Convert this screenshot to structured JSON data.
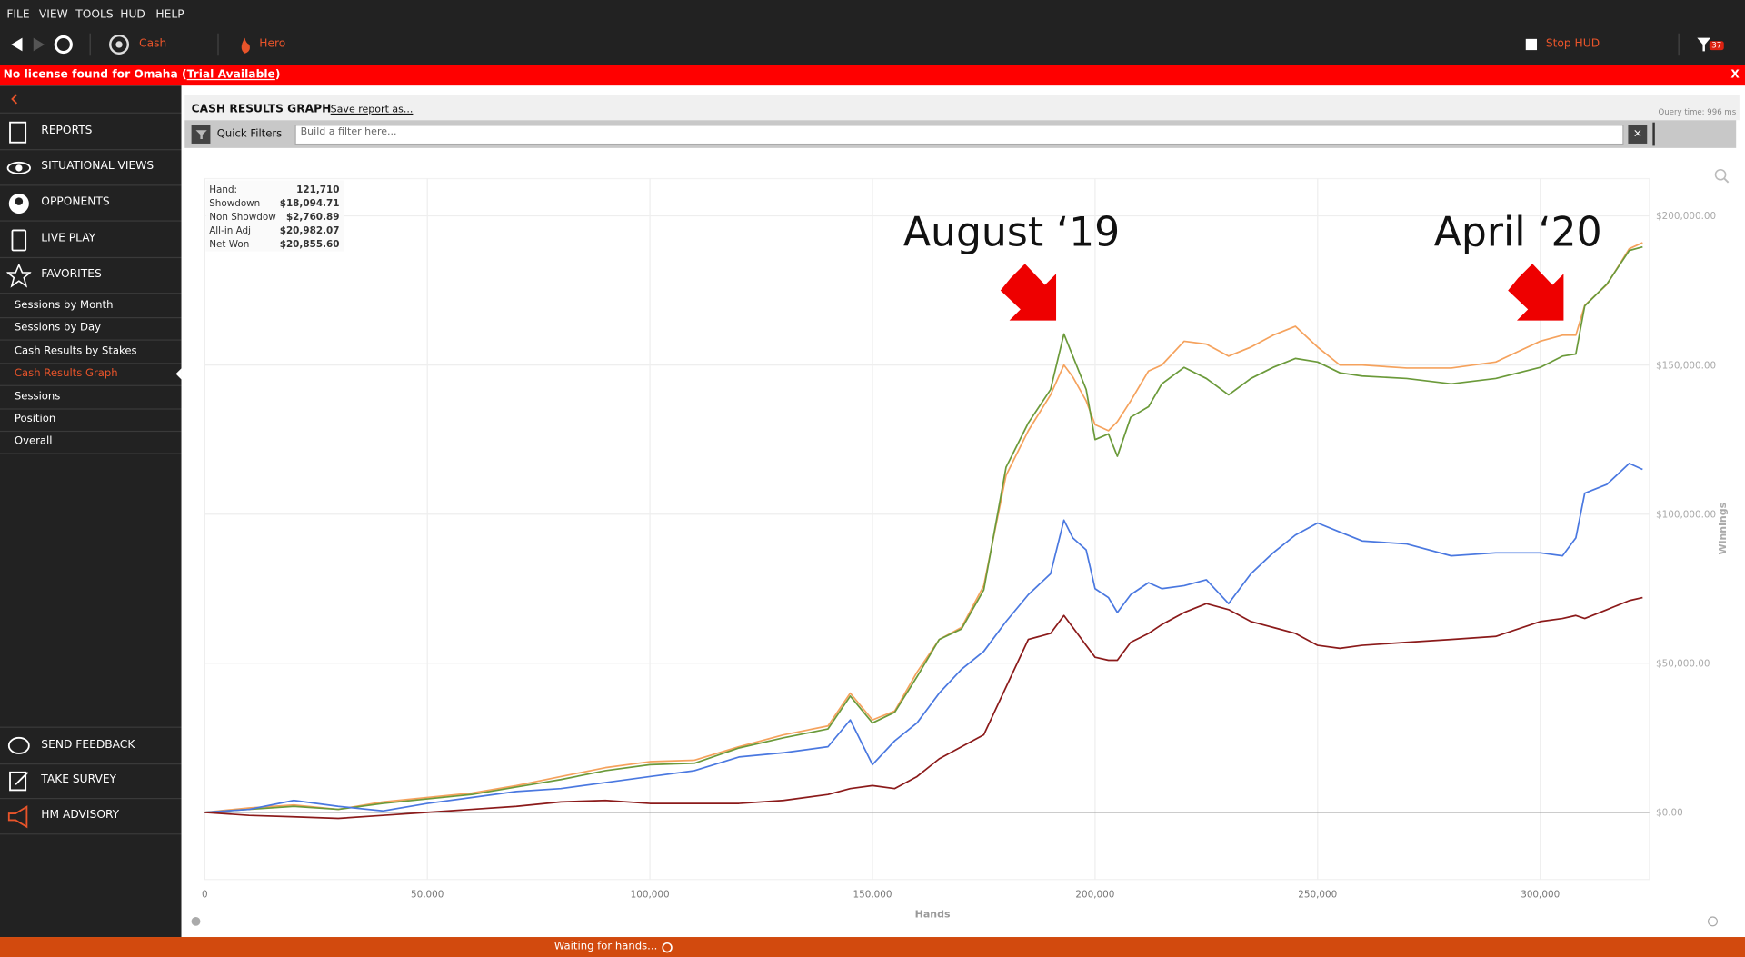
{
  "menu": [
    "FILE",
    "VIEW",
    "TOOLS",
    "HUD",
    "HELP"
  ],
  "toolbar": {
    "cash": "Cash",
    "hero": "Hero",
    "stop_hud": "Stop HUD",
    "filter_count": "37"
  },
  "license": {
    "message": "No license found for Omaha (",
    "link": "Trial Available",
    "suffix": ")",
    "close": "X"
  },
  "sidebar": {
    "nav": [
      "REPORTS",
      "SITUATIONAL VIEWS",
      "OPPONENTS",
      "LIVE PLAY",
      "FAVORITES"
    ],
    "favorites": [
      "Sessions by Month",
      "Sessions by Day",
      "Cash Results by Stakes",
      "Cash Results Graph",
      "Sessions",
      "Position",
      "Overall"
    ],
    "active_favorite": 3,
    "bottom": [
      "SEND FEEDBACK",
      "TAKE SURVEY",
      "HM ADVISORY"
    ]
  },
  "report": {
    "title": "CASH RESULTS GRAPH",
    "save": "Save report as...",
    "query_time": "Query time: 996 ms",
    "quick_filters": "Quick Filters",
    "filter_placeholder": "Build a filter here..."
  },
  "tooltip": {
    "rows": [
      [
        "Hand:",
        "121,710"
      ],
      [
        "Showdown",
        "$18,094.71"
      ],
      [
        "Non Showdow",
        "$2,760.89"
      ],
      [
        "All-in Adj",
        "$20,982.07"
      ],
      [
        "Net Won",
        "$20,855.60"
      ]
    ]
  },
  "chart_data": {
    "type": "line",
    "xlabel": "Hands",
    "ylabel": "Winnings",
    "annotations": [
      "August ‘19",
      "April ‘20"
    ],
    "grid": true,
    "x": [
      0,
      10000,
      20000,
      30000,
      40000,
      50000,
      60000,
      70000,
      80000,
      90000,
      100000,
      110000,
      120000,
      130000,
      140000,
      145000,
      150000,
      155000,
      160000,
      165000,
      170000,
      175000,
      180000,
      185000,
      190000,
      193000,
      195000,
      198000,
      200000,
      203000,
      205000,
      208000,
      212000,
      215000,
      220000,
      225000,
      230000,
      235000,
      240000,
      245000,
      250000,
      255000,
      260000,
      270000,
      280000,
      290000,
      300000,
      305000,
      308000,
      310000,
      315000,
      320000,
      323000
    ],
    "series": [
      {
        "color": "#f5a25d",
        "values": [
          0,
          1500,
          2500,
          1000,
          3500,
          5000,
          6500,
          9000,
          12000,
          15000,
          17000,
          17500,
          22000,
          26000,
          29000,
          40000,
          31000,
          34000,
          47000,
          58000,
          62000,
          76000,
          113000,
          128000,
          140000,
          150000,
          146000,
          138000,
          130000,
          128000,
          131000,
          138000,
          148000,
          150000,
          158000,
          157000,
          153000,
          156000,
          160000,
          163000,
          156000,
          150000,
          150000,
          149000,
          149000,
          151000,
          158000,
          160000,
          160000,
          170000,
          177000,
          189000,
          191000
        ]
      },
      {
        "color": "#6b9a3a",
        "values": [
          0,
          1000,
          2000,
          1000,
          3000,
          4500,
          6000,
          8500,
          11000,
          14000,
          16000,
          16500,
          21600,
          25000,
          28000,
          39000,
          30000,
          33600,
          45500,
          58000,
          61500,
          74600,
          115700,
          130600,
          141800,
          160400,
          153000,
          141800,
          125000,
          126900,
          119400,
          132500,
          136000,
          143700,
          149200,
          145500,
          140000,
          145500,
          149200,
          152200,
          151000,
          147400,
          146300,
          145500,
          143700,
          145500,
          149200,
          153000,
          153700,
          169800,
          177200,
          188400,
          189600
        ]
      },
      {
        "color": "#4a78e0",
        "values": [
          0,
          1000,
          4000,
          2000,
          500,
          3000,
          5000,
          7000,
          8000,
          10000,
          12000,
          14000,
          18600,
          20000,
          22000,
          31000,
          16000,
          24000,
          30000,
          40000,
          48000,
          54000,
          64000,
          73000,
          80000,
          98000,
          92000,
          88000,
          75000,
          72000,
          67000,
          73000,
          77000,
          75000,
          76000,
          78000,
          70000,
          80000,
          87000,
          93000,
          97000,
          94000,
          91000,
          90000,
          86000,
          87000,
          87000,
          86000,
          92000,
          107000,
          110000,
          117000,
          115000
        ]
      },
      {
        "color": "#8b1a1a",
        "values": [
          0,
          -1000,
          -1500,
          -2000,
          -1000,
          0,
          1000,
          2000,
          3500,
          4000,
          3000,
          3000,
          3000,
          4000,
          6000,
          8000,
          9000,
          8000,
          12000,
          18000,
          22000,
          26000,
          42000,
          58000,
          60000,
          66000,
          62000,
          56000,
          52000,
          51000,
          51000,
          57000,
          60000,
          63000,
          67000,
          70000,
          68000,
          64000,
          62000,
          60000,
          56000,
          55000,
          56000,
          57000,
          58000,
          59000,
          64000,
          65000,
          66000,
          65000,
          68000,
          71000,
          72000
        ]
      }
    ],
    "xlim": [
      0,
      324500
    ],
    "ylim": [
      -22500,
      212500
    ],
    "xticks": [
      0,
      {
        "value": 50000,
        "label": "50,000"
      },
      {
        "value": 100000,
        "label": "100,000"
      },
      {
        "value": 150000,
        "label": "150,000"
      },
      {
        "value": 200000,
        "label": "200,000"
      },
      {
        "value": 250000,
        "label": "250,000"
      },
      {
        "value": 300000,
        "label": "300,000"
      }
    ],
    "yticks": [
      {
        "value": 0,
        "label": "$0.00"
      },
      {
        "value": 50000,
        "label": "$50,000.00"
      },
      {
        "value": 100000,
        "label": "$100,000.00"
      },
      {
        "value": 150000,
        "label": "$150,000.00"
      },
      {
        "value": 200000,
        "label": "$200,000.00"
      }
    ]
  },
  "status": "Waiting for hands..."
}
